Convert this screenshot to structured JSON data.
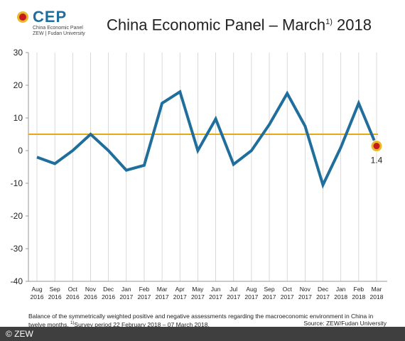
{
  "logo": {
    "text": "CEP",
    "subtitle1": "China Economic Panel",
    "subtitle2": "ZEW | Fudan University"
  },
  "title": {
    "main": "China Economic Panel – March",
    "sup": "1)",
    "year": " 2018"
  },
  "chart_data": {
    "type": "line",
    "x_month": [
      "Aug",
      "Sep",
      "Oct",
      "Nov",
      "Dec",
      "Jan",
      "Feb",
      "Mar",
      "Apr",
      "May",
      "Jun",
      "Jul",
      "Aug",
      "Sep",
      "Oct",
      "Nov",
      "Dec",
      "Jan",
      "Feb",
      "Mar"
    ],
    "x_year": [
      "2016",
      "2016",
      "2016",
      "2016",
      "2016",
      "2017",
      "2017",
      "2017",
      "2017",
      "2017",
      "2017",
      "2017",
      "2017",
      "2017",
      "2017",
      "2017",
      "2017",
      "2018",
      "2018",
      "2018"
    ],
    "series": [
      {
        "values": [
          -2,
          -4,
          0,
          5,
          0,
          -6,
          -4.5,
          14.5,
          18,
          0,
          9.7,
          -4.2,
          0,
          8,
          17.5,
          7.5,
          -10.5,
          1,
          14.5,
          1.4
        ],
        "color": "#1f6e9c"
      }
    ],
    "reference_line": {
      "value": 5,
      "color": "#e6a817"
    },
    "last_point_label": "1.4",
    "ylim": [
      -40,
      30
    ],
    "yticks": [
      "30",
      "20",
      "10",
      "0",
      "-10",
      "-20",
      "-30",
      "-40"
    ],
    "ytick_values": [
      30,
      20,
      10,
      0,
      -10,
      -20,
      -30,
      -40
    ],
    "grid": "vertical",
    "colors": {
      "grid": "#cfcfcf",
      "marker_ring": "#e8b928",
      "marker_fill": "#c8191e"
    }
  },
  "footer": {
    "note_line1": "Balance of the symmetrically weighted positive and negative assessments regarding the macroeconomic environment in China in",
    "note_line2_a": "twelve months. ",
    "note_line2_sup": "1)",
    "note_line2_b": "Survey period 22 February 2018 – 07 March 2018.",
    "source": "Source: ZEW/Fudan University"
  },
  "copyright": "© ZEW"
}
